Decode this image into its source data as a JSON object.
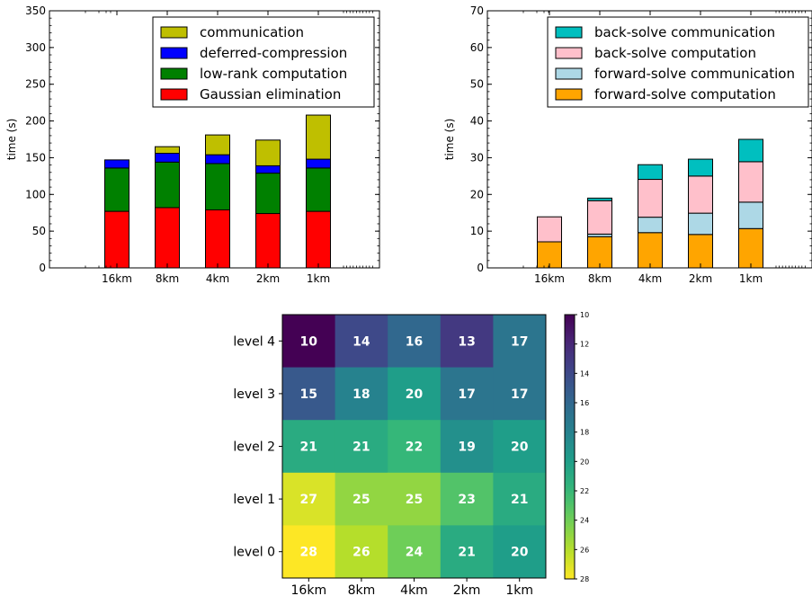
{
  "chart_data": [
    {
      "type": "bar",
      "stacked": true,
      "categories": [
        "16km",
        "8km",
        "4km",
        "2km",
        "1km"
      ],
      "ylabel": "time (s)",
      "ylim": [
        0,
        350
      ],
      "yticks": [
        0,
        50,
        100,
        150,
        200,
        250,
        300,
        350
      ],
      "legend_position": "top-right",
      "series": [
        {
          "name": "Gaussian elimination",
          "color": "#ff0000",
          "values": [
            77,
            82,
            79,
            74,
            77
          ]
        },
        {
          "name": "low-rank computation",
          "color": "#008000",
          "values": [
            59,
            62,
            63,
            55,
            59
          ]
        },
        {
          "name": "deferred-compression",
          "color": "#0000ff",
          "values": [
            11,
            12,
            12,
            10,
            12
          ]
        },
        {
          "name": "communication",
          "color": "#bfbf00",
          "values": [
            0,
            9,
            27,
            35,
            60
          ]
        }
      ]
    },
    {
      "type": "bar",
      "stacked": true,
      "categories": [
        "16km",
        "8km",
        "4km",
        "2km",
        "1km"
      ],
      "ylabel": "time (s)",
      "ylim": [
        0,
        70
      ],
      "yticks": [
        0,
        10,
        20,
        30,
        40,
        50,
        60,
        70
      ],
      "legend_position": "top-right",
      "series": [
        {
          "name": "forward-solve computation",
          "color": "#ffa500",
          "values": [
            7.1,
            8.5,
            9.6,
            9.1,
            10.7
          ]
        },
        {
          "name": "forward-solve communication",
          "color": "#add8e6",
          "values": [
            0,
            0.7,
            4.2,
            5.8,
            7.2
          ]
        },
        {
          "name": "back-solve computation",
          "color": "#ffc0cb",
          "values": [
            6.8,
            9.1,
            10.3,
            10.1,
            11.0
          ]
        },
        {
          "name": "back-solve communication",
          "color": "#00bfbf",
          "values": [
            0,
            0.7,
            4.0,
            4.6,
            6.1
          ]
        }
      ]
    },
    {
      "type": "heatmap",
      "columns": [
        "16km",
        "8km",
        "4km",
        "2km",
        "1km"
      ],
      "rows": [
        "level 4",
        "level 3",
        "level 2",
        "level 1",
        "level 0"
      ],
      "values": [
        [
          10,
          14,
          16,
          13,
          17
        ],
        [
          15,
          18,
          20,
          17,
          17
        ],
        [
          21,
          21,
          22,
          19,
          20
        ],
        [
          27,
          25,
          25,
          23,
          21
        ],
        [
          28,
          26,
          24,
          21,
          20
        ]
      ],
      "colormap": "viridis (reversed: 10 = dark purple, 28 = yellow)",
      "colorbar_range": [
        10,
        28
      ],
      "colorbar_ticks": [
        10,
        12,
        14,
        16,
        18,
        20,
        22,
        24,
        26,
        28
      ]
    }
  ]
}
